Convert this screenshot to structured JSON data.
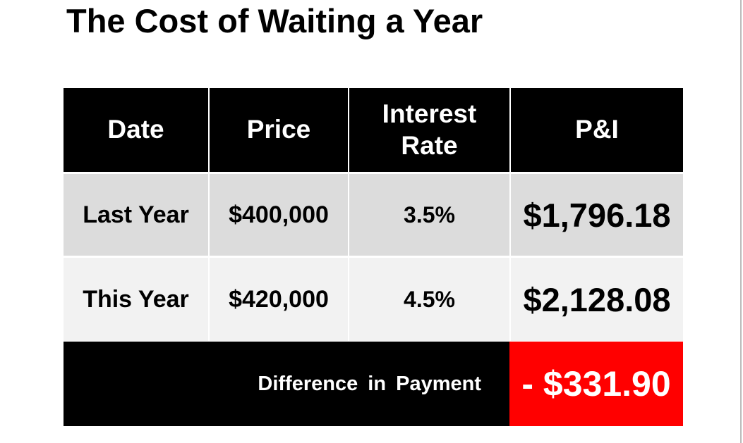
{
  "title": "The Cost of Waiting a Year",
  "table": {
    "header": [
      "Date",
      "Price",
      "Interest Rate",
      "P&I"
    ],
    "rows": [
      [
        "Last Year",
        "$400,000",
        "3.5%",
        "$1,796.18"
      ],
      [
        "This Year",
        "$420,000",
        "4.5%",
        "$2,128.08"
      ]
    ],
    "footer": {
      "label": "Difference in Payment",
      "value": "- $331.90"
    }
  }
}
